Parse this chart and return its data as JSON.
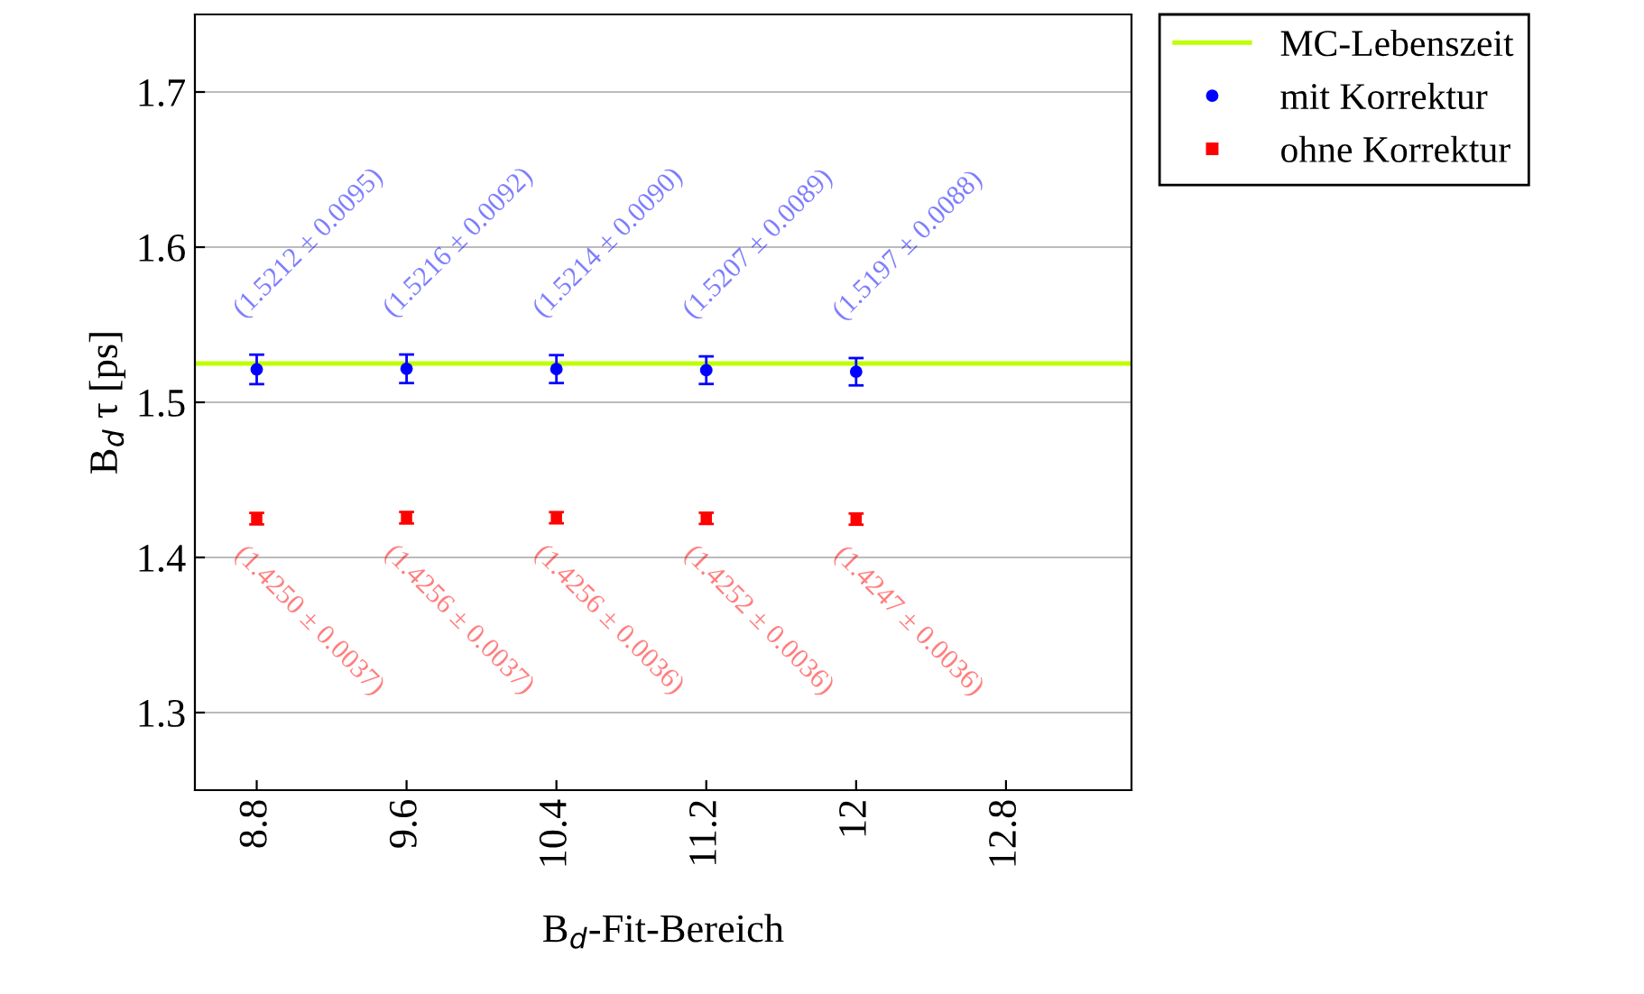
{
  "chart_data": {
    "type": "scatter",
    "xlabel": "B$_{d}$-Fit-Bereich",
    "ylabel": "B$_{d}$ τ [ps]",
    "x": [
      8.8,
      9.6,
      10.4,
      11.2,
      12.0
    ],
    "series": [
      {
        "name": "mit Korrektur",
        "color": "#0000ff",
        "marker": "circle",
        "values": [
          1.5212,
          1.5216,
          1.5214,
          1.5207,
          1.5197
        ],
        "errors": [
          0.0095,
          0.0092,
          0.009,
          0.0089,
          0.0088
        ],
        "value_labels": [
          "(1.5212 ± 0.0095)",
          "(1.5216 ± 0.0092)",
          "(1.5214 ± 0.0090)",
          "(1.5207 ± 0.0089)",
          "(1.5197 ± 0.0088)"
        ]
      },
      {
        "name": "ohne Korrektur",
        "color": "#ff0000",
        "marker": "square",
        "values": [
          1.425,
          1.4256,
          1.4256,
          1.4252,
          1.4247
        ],
        "errors": [
          0.0037,
          0.0037,
          0.0036,
          0.0036,
          0.0036
        ],
        "value_labels": [
          "(1.4250 ± 0.0037)",
          "(1.4256 ± 0.0037)",
          "(1.4256 ± 0.0036)",
          "(1.4252 ± 0.0036)",
          "(1.4247 ± 0.0036)"
        ]
      }
    ],
    "ref_lines": [
      {
        "axis": "y",
        "value": 1.525,
        "label": "MC-Lebenszeit",
        "color": "#bfff00"
      }
    ],
    "xlim": [
      8.47,
      13.47
    ],
    "xticks": [
      {
        "value": 8.8,
        "label": "8.8"
      },
      {
        "value": 9.6,
        "label": "9.6"
      },
      {
        "value": 10.4,
        "label": "10.4"
      },
      {
        "value": 11.2,
        "label": "11.2"
      },
      {
        "value": 12,
        "label": "12"
      },
      {
        "value": 12.8,
        "label": "12.8"
      }
    ],
    "ylim": [
      1.25,
      1.75
    ],
    "yticks": [
      1.3,
      1.4,
      1.5,
      1.6,
      1.7
    ],
    "grid": "y",
    "legend": "top right"
  }
}
